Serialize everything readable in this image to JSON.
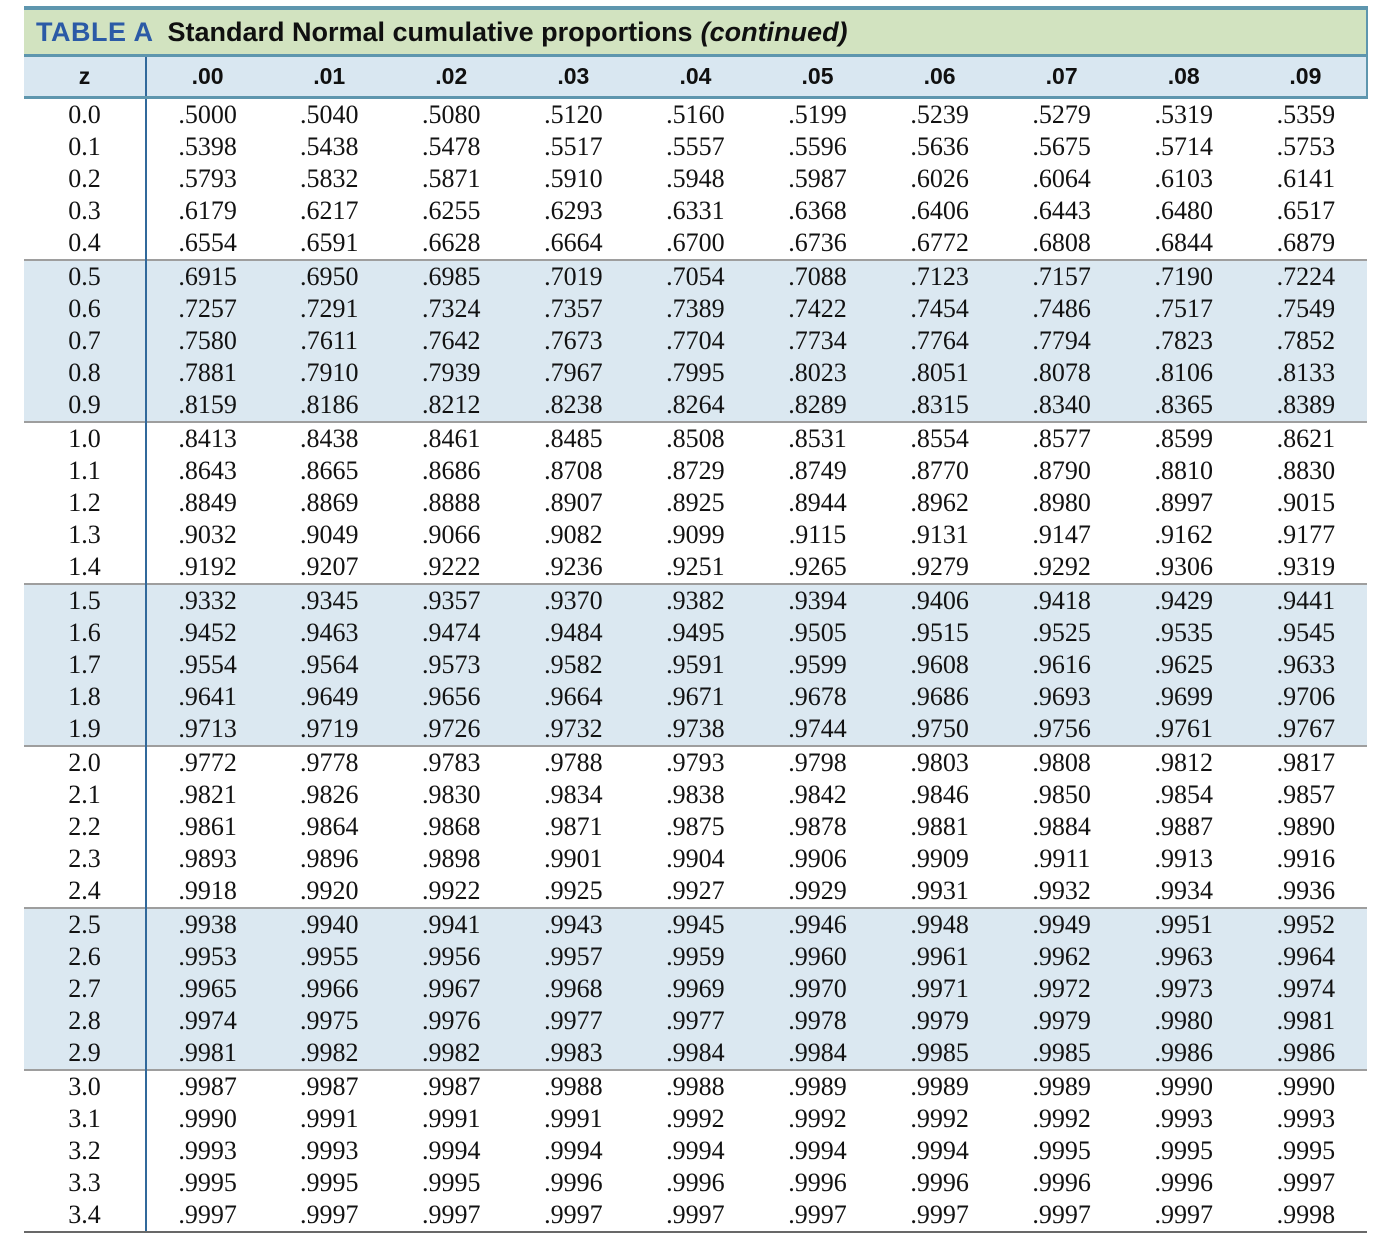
{
  "title": {
    "tag": "TABLE A",
    "main": "Standard Normal cumulative proportions",
    "continued": "(continued)"
  },
  "colors": {
    "title_bg": "#d2e3c0",
    "rule_teal": "#5e96ae",
    "header_bg": "#d9e7f1",
    "band_bg": "#dbe8f1",
    "z_divider": "#31699b",
    "band_separator": "#9e9e9e",
    "bottom_rule": "#686868",
    "title_label_blue": "#2b5aa6",
    "text": "#121212"
  },
  "table": {
    "band_size": 5,
    "columns": [
      "z",
      ".00",
      ".01",
      ".02",
      ".03",
      ".04",
      ".05",
      ".06",
      ".07",
      ".08",
      ".09"
    ],
    "rows": [
      {
        "z": "0.0",
        "values": [
          ".5000",
          ".5040",
          ".5080",
          ".5120",
          ".5160",
          ".5199",
          ".5239",
          ".5279",
          ".5319",
          ".5359"
        ]
      },
      {
        "z": "0.1",
        "values": [
          ".5398",
          ".5438",
          ".5478",
          ".5517",
          ".5557",
          ".5596",
          ".5636",
          ".5675",
          ".5714",
          ".5753"
        ]
      },
      {
        "z": "0.2",
        "values": [
          ".5793",
          ".5832",
          ".5871",
          ".5910",
          ".5948",
          ".5987",
          ".6026",
          ".6064",
          ".6103",
          ".6141"
        ]
      },
      {
        "z": "0.3",
        "values": [
          ".6179",
          ".6217",
          ".6255",
          ".6293",
          ".6331",
          ".6368",
          ".6406",
          ".6443",
          ".6480",
          ".6517"
        ]
      },
      {
        "z": "0.4",
        "values": [
          ".6554",
          ".6591",
          ".6628",
          ".6664",
          ".6700",
          ".6736",
          ".6772",
          ".6808",
          ".6844",
          ".6879"
        ]
      },
      {
        "z": "0.5",
        "values": [
          ".6915",
          ".6950",
          ".6985",
          ".7019",
          ".7054",
          ".7088",
          ".7123",
          ".7157",
          ".7190",
          ".7224"
        ]
      },
      {
        "z": "0.6",
        "values": [
          ".7257",
          ".7291",
          ".7324",
          ".7357",
          ".7389",
          ".7422",
          ".7454",
          ".7486",
          ".7517",
          ".7549"
        ]
      },
      {
        "z": "0.7",
        "values": [
          ".7580",
          ".7611",
          ".7642",
          ".7673",
          ".7704",
          ".7734",
          ".7764",
          ".7794",
          ".7823",
          ".7852"
        ]
      },
      {
        "z": "0.8",
        "values": [
          ".7881",
          ".7910",
          ".7939",
          ".7967",
          ".7995",
          ".8023",
          ".8051",
          ".8078",
          ".8106",
          ".8133"
        ]
      },
      {
        "z": "0.9",
        "values": [
          ".8159",
          ".8186",
          ".8212",
          ".8238",
          ".8264",
          ".8289",
          ".8315",
          ".8340",
          ".8365",
          ".8389"
        ]
      },
      {
        "z": "1.0",
        "values": [
          ".8413",
          ".8438",
          ".8461",
          ".8485",
          ".8508",
          ".8531",
          ".8554",
          ".8577",
          ".8599",
          ".8621"
        ]
      },
      {
        "z": "1.1",
        "values": [
          ".8643",
          ".8665",
          ".8686",
          ".8708",
          ".8729",
          ".8749",
          ".8770",
          ".8790",
          ".8810",
          ".8830"
        ]
      },
      {
        "z": "1.2",
        "values": [
          ".8849",
          ".8869",
          ".8888",
          ".8907",
          ".8925",
          ".8944",
          ".8962",
          ".8980",
          ".8997",
          ".9015"
        ]
      },
      {
        "z": "1.3",
        "values": [
          ".9032",
          ".9049",
          ".9066",
          ".9082",
          ".9099",
          ".9115",
          ".9131",
          ".9147",
          ".9162",
          ".9177"
        ]
      },
      {
        "z": "1.4",
        "values": [
          ".9192",
          ".9207",
          ".9222",
          ".9236",
          ".9251",
          ".9265",
          ".9279",
          ".9292",
          ".9306",
          ".9319"
        ]
      },
      {
        "z": "1.5",
        "values": [
          ".9332",
          ".9345",
          ".9357",
          ".9370",
          ".9382",
          ".9394",
          ".9406",
          ".9418",
          ".9429",
          ".9441"
        ]
      },
      {
        "z": "1.6",
        "values": [
          ".9452",
          ".9463",
          ".9474",
          ".9484",
          ".9495",
          ".9505",
          ".9515",
          ".9525",
          ".9535",
          ".9545"
        ]
      },
      {
        "z": "1.7",
        "values": [
          ".9554",
          ".9564",
          ".9573",
          ".9582",
          ".9591",
          ".9599",
          ".9608",
          ".9616",
          ".9625",
          ".9633"
        ]
      },
      {
        "z": "1.8",
        "values": [
          ".9641",
          ".9649",
          ".9656",
          ".9664",
          ".9671",
          ".9678",
          ".9686",
          ".9693",
          ".9699",
          ".9706"
        ]
      },
      {
        "z": "1.9",
        "values": [
          ".9713",
          ".9719",
          ".9726",
          ".9732",
          ".9738",
          ".9744",
          ".9750",
          ".9756",
          ".9761",
          ".9767"
        ]
      },
      {
        "z": "2.0",
        "values": [
          ".9772",
          ".9778",
          ".9783",
          ".9788",
          ".9793",
          ".9798",
          ".9803",
          ".9808",
          ".9812",
          ".9817"
        ]
      },
      {
        "z": "2.1",
        "values": [
          ".9821",
          ".9826",
          ".9830",
          ".9834",
          ".9838",
          ".9842",
          ".9846",
          ".9850",
          ".9854",
          ".9857"
        ]
      },
      {
        "z": "2.2",
        "values": [
          ".9861",
          ".9864",
          ".9868",
          ".9871",
          ".9875",
          ".9878",
          ".9881",
          ".9884",
          ".9887",
          ".9890"
        ]
      },
      {
        "z": "2.3",
        "values": [
          ".9893",
          ".9896",
          ".9898",
          ".9901",
          ".9904",
          ".9906",
          ".9909",
          ".9911",
          ".9913",
          ".9916"
        ]
      },
      {
        "z": "2.4",
        "values": [
          ".9918",
          ".9920",
          ".9922",
          ".9925",
          ".9927",
          ".9929",
          ".9931",
          ".9932",
          ".9934",
          ".9936"
        ]
      },
      {
        "z": "2.5",
        "values": [
          ".9938",
          ".9940",
          ".9941",
          ".9943",
          ".9945",
          ".9946",
          ".9948",
          ".9949",
          ".9951",
          ".9952"
        ]
      },
      {
        "z": "2.6",
        "values": [
          ".9953",
          ".9955",
          ".9956",
          ".9957",
          ".9959",
          ".9960",
          ".9961",
          ".9962",
          ".9963",
          ".9964"
        ]
      },
      {
        "z": "2.7",
        "values": [
          ".9965",
          ".9966",
          ".9967",
          ".9968",
          ".9969",
          ".9970",
          ".9971",
          ".9972",
          ".9973",
          ".9974"
        ]
      },
      {
        "z": "2.8",
        "values": [
          ".9974",
          ".9975",
          ".9976",
          ".9977",
          ".9977",
          ".9978",
          ".9979",
          ".9979",
          ".9980",
          ".9981"
        ]
      },
      {
        "z": "2.9",
        "values": [
          ".9981",
          ".9982",
          ".9982",
          ".9983",
          ".9984",
          ".9984",
          ".9985",
          ".9985",
          ".9986",
          ".9986"
        ]
      },
      {
        "z": "3.0",
        "values": [
          ".9987",
          ".9987",
          ".9987",
          ".9988",
          ".9988",
          ".9989",
          ".9989",
          ".9989",
          ".9990",
          ".9990"
        ]
      },
      {
        "z": "3.1",
        "values": [
          ".9990",
          ".9991",
          ".9991",
          ".9991",
          ".9992",
          ".9992",
          ".9992",
          ".9992",
          ".9993",
          ".9993"
        ]
      },
      {
        "z": "3.2",
        "values": [
          ".9993",
          ".9993",
          ".9994",
          ".9994",
          ".9994",
          ".9994",
          ".9994",
          ".9995",
          ".9995",
          ".9995"
        ]
      },
      {
        "z": "3.3",
        "values": [
          ".9995",
          ".9995",
          ".9995",
          ".9996",
          ".9996",
          ".9996",
          ".9996",
          ".9996",
          ".9996",
          ".9997"
        ]
      },
      {
        "z": "3.4",
        "values": [
          ".9997",
          ".9997",
          ".9997",
          ".9997",
          ".9997",
          ".9997",
          ".9997",
          ".9997",
          ".9997",
          ".9998"
        ]
      }
    ]
  }
}
